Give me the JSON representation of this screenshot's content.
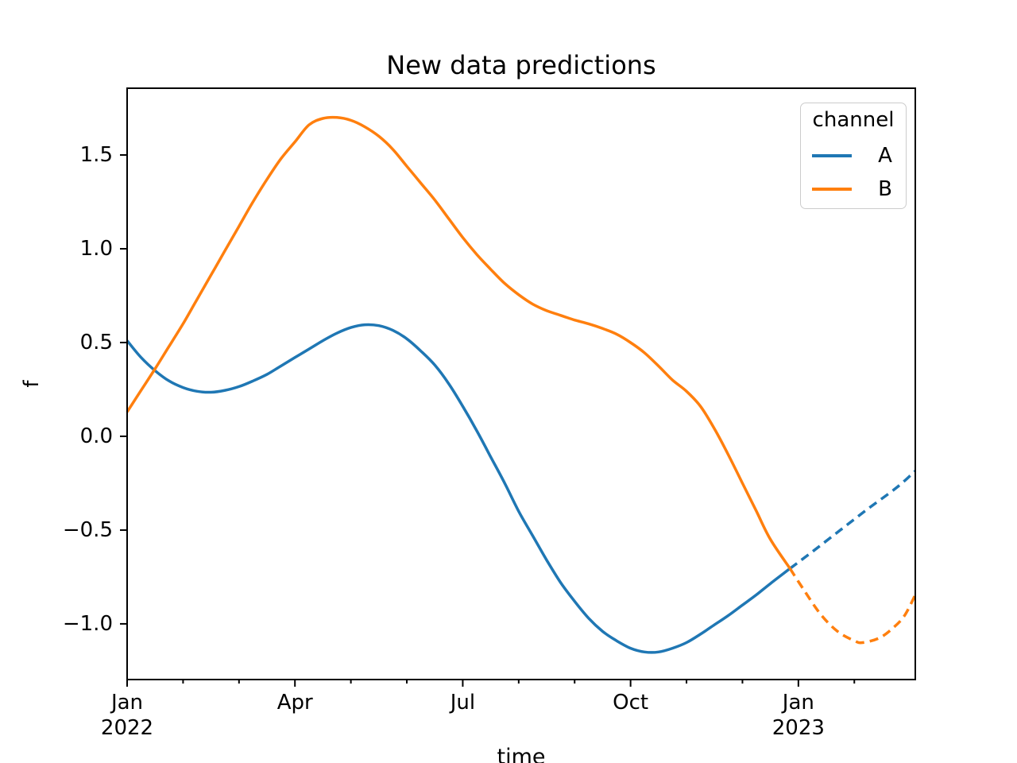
{
  "chart_data": {
    "type": "line",
    "title": "New data predictions",
    "x_axis": {
      "label": "time",
      "major_ticks": [
        {
          "m": 0,
          "label": "Jan\n2022"
        },
        {
          "m": 3,
          "label": "Apr"
        },
        {
          "m": 6,
          "label": "Jul"
        },
        {
          "m": 9,
          "label": "Oct"
        },
        {
          "m": 12,
          "label": "Jan\n2023"
        }
      ],
      "minor_tick_months": [
        1,
        2,
        4,
        5,
        7,
        8,
        10,
        11,
        13
      ],
      "xlim": [
        0,
        14.09
      ]
    },
    "y_axis": {
      "label": "f",
      "ticks": [
        {
          "v": 1.5,
          "label": "1.5"
        },
        {
          "v": 1.0,
          "label": "1.0"
        },
        {
          "v": 0.5,
          "label": "0.5"
        },
        {
          "v": 0.0,
          "label": "0.0"
        },
        {
          "v": -0.5,
          "label": "−0.5"
        },
        {
          "v": -1.0,
          "label": "−1.0"
        }
      ],
      "ylim": [
        -1.297,
        1.856
      ]
    },
    "legend": {
      "title": "channel",
      "entries": [
        {
          "label": "A",
          "color": "#1f77b4"
        },
        {
          "label": "B",
          "color": "#ff7f0e"
        }
      ]
    },
    "series": [
      {
        "name": "A",
        "segment": "observed",
        "style": "solid",
        "color": "#1f77b4",
        "points": [
          [
            0,
            0.51
          ],
          [
            0.25,
            0.42
          ],
          [
            0.5,
            0.35
          ],
          [
            0.75,
            0.295
          ],
          [
            1,
            0.26
          ],
          [
            1.25,
            0.24
          ],
          [
            1.5,
            0.235
          ],
          [
            1.75,
            0.245
          ],
          [
            2,
            0.265
          ],
          [
            2.25,
            0.295
          ],
          [
            2.5,
            0.33
          ],
          [
            2.75,
            0.375
          ],
          [
            3,
            0.42
          ],
          [
            3.25,
            0.465
          ],
          [
            3.5,
            0.51
          ],
          [
            3.75,
            0.55
          ],
          [
            4,
            0.58
          ],
          [
            4.25,
            0.595
          ],
          [
            4.5,
            0.59
          ],
          [
            4.75,
            0.565
          ],
          [
            5,
            0.52
          ],
          [
            5.25,
            0.455
          ],
          [
            5.5,
            0.38
          ],
          [
            5.75,
            0.28
          ],
          [
            6,
            0.16
          ],
          [
            6.25,
            0.03
          ],
          [
            6.5,
            -0.11
          ],
          [
            6.75,
            -0.25
          ],
          [
            7,
            -0.4
          ],
          [
            7.25,
            -0.53
          ],
          [
            7.5,
            -0.66
          ],
          [
            7.75,
            -0.78
          ],
          [
            8,
            -0.88
          ],
          [
            8.25,
            -0.97
          ],
          [
            8.5,
            -1.04
          ],
          [
            8.75,
            -1.09
          ],
          [
            9,
            -1.13
          ],
          [
            9.25,
            -1.15
          ],
          [
            9.5,
            -1.15
          ],
          [
            9.75,
            -1.13
          ],
          [
            10,
            -1.1
          ],
          [
            10.25,
            -1.055
          ],
          [
            10.5,
            -1.005
          ],
          [
            10.75,
            -0.955
          ],
          [
            11,
            -0.9
          ],
          [
            11.25,
            -0.845
          ],
          [
            11.5,
            -0.785
          ],
          [
            11.85,
            -0.705
          ]
        ]
      },
      {
        "name": "A",
        "segment": "predicted",
        "style": "dashed",
        "color": "#1f77b4",
        "points": [
          [
            11.85,
            -0.705
          ],
          [
            12.25,
            -0.615
          ],
          [
            12.75,
            -0.5
          ],
          [
            13.25,
            -0.385
          ],
          [
            13.75,
            -0.275
          ],
          [
            14.09,
            -0.185
          ]
        ]
      },
      {
        "name": "B",
        "segment": "observed",
        "style": "solid",
        "color": "#ff7f0e",
        "points": [
          [
            0,
            0.13
          ],
          [
            0.25,
            0.245
          ],
          [
            0.5,
            0.36
          ],
          [
            0.75,
            0.48
          ],
          [
            1,
            0.6
          ],
          [
            1.25,
            0.73
          ],
          [
            1.5,
            0.86
          ],
          [
            1.75,
            0.99
          ],
          [
            2,
            1.12
          ],
          [
            2.25,
            1.25
          ],
          [
            2.5,
            1.37
          ],
          [
            2.75,
            1.48
          ],
          [
            3,
            1.57
          ],
          [
            3.25,
            1.66
          ],
          [
            3.5,
            1.695
          ],
          [
            3.75,
            1.7
          ],
          [
            4,
            1.685
          ],
          [
            4.25,
            1.65
          ],
          [
            4.5,
            1.6
          ],
          [
            4.75,
            1.53
          ],
          [
            5,
            1.44
          ],
          [
            5.25,
            1.35
          ],
          [
            5.5,
            1.26
          ],
          [
            5.75,
            1.16
          ],
          [
            6,
            1.06
          ],
          [
            6.25,
            0.97
          ],
          [
            6.5,
            0.89
          ],
          [
            6.75,
            0.815
          ],
          [
            7,
            0.755
          ],
          [
            7.25,
            0.705
          ],
          [
            7.5,
            0.67
          ],
          [
            7.75,
            0.645
          ],
          [
            8,
            0.62
          ],
          [
            8.25,
            0.6
          ],
          [
            8.5,
            0.575
          ],
          [
            8.75,
            0.545
          ],
          [
            9,
            0.5
          ],
          [
            9.25,
            0.445
          ],
          [
            9.5,
            0.375
          ],
          [
            9.75,
            0.3
          ],
          [
            10,
            0.24
          ],
          [
            10.25,
            0.16
          ],
          [
            10.5,
            0.04
          ],
          [
            10.75,
            -0.1
          ],
          [
            11,
            -0.25
          ],
          [
            11.25,
            -0.4
          ],
          [
            11.5,
            -0.55
          ],
          [
            11.85,
            -0.705
          ]
        ]
      },
      {
        "name": "B",
        "segment": "predicted",
        "style": "dashed",
        "color": "#ff7f0e",
        "points": [
          [
            11.85,
            -0.705
          ],
          [
            12.1,
            -0.82
          ],
          [
            12.4,
            -0.95
          ],
          [
            12.7,
            -1.04
          ],
          [
            13,
            -1.09
          ],
          [
            13.15,
            -1.1
          ],
          [
            13.45,
            -1.075
          ],
          [
            13.7,
            -1.02
          ],
          [
            13.9,
            -0.955
          ],
          [
            14.09,
            -0.845
          ]
        ]
      }
    ]
  }
}
